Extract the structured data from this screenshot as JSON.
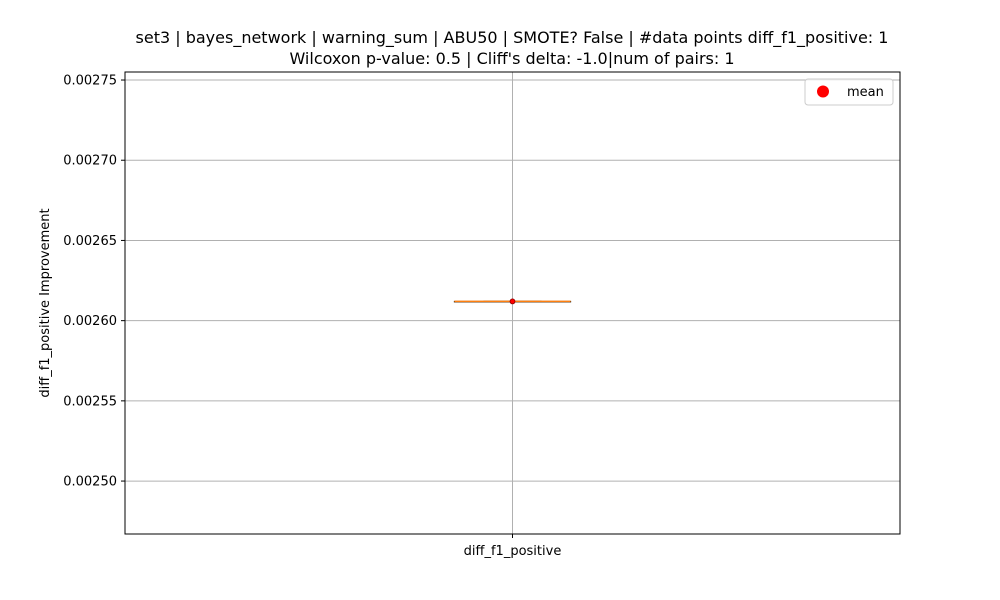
{
  "chart_data": {
    "type": "box",
    "title_line1": "set3 | bayes_network | warning_sum | ABU50 | SMOTE? False | #data points diff_f1_positive: 1",
    "title_line2": "Wilcoxon p-value: 0.5 | Cliff's delta: -1.0|num of pairs: 1",
    "xlabel": "",
    "ylabel": "diff_f1_positive Improvement",
    "categories": [
      "diff_f1_positive"
    ],
    "ylim": [
      0.002467,
      0.002755
    ],
    "yticks": [
      0.0025,
      0.00255,
      0.0026,
      0.00265,
      0.0027,
      0.00275
    ],
    "ytick_labels": [
      "0.00250",
      "0.00255",
      "0.00260",
      "0.00265",
      "0.00270",
      "0.00275"
    ],
    "boxes": [
      {
        "category": "diff_f1_positive",
        "min": 0.002612,
        "q1": 0.002612,
        "median": 0.002612,
        "q3": 0.002612,
        "max": 0.002612,
        "mean": 0.002612
      }
    ],
    "grid": true,
    "legend": {
      "placement": "top-right",
      "entries": [
        {
          "label": "mean",
          "marker": "circle",
          "color": "#ff0000"
        }
      ]
    },
    "colors": {
      "median": "#ff7f0e",
      "box": "#000000",
      "mean": "#ff0000",
      "grid": "#b0b0b0"
    }
  }
}
